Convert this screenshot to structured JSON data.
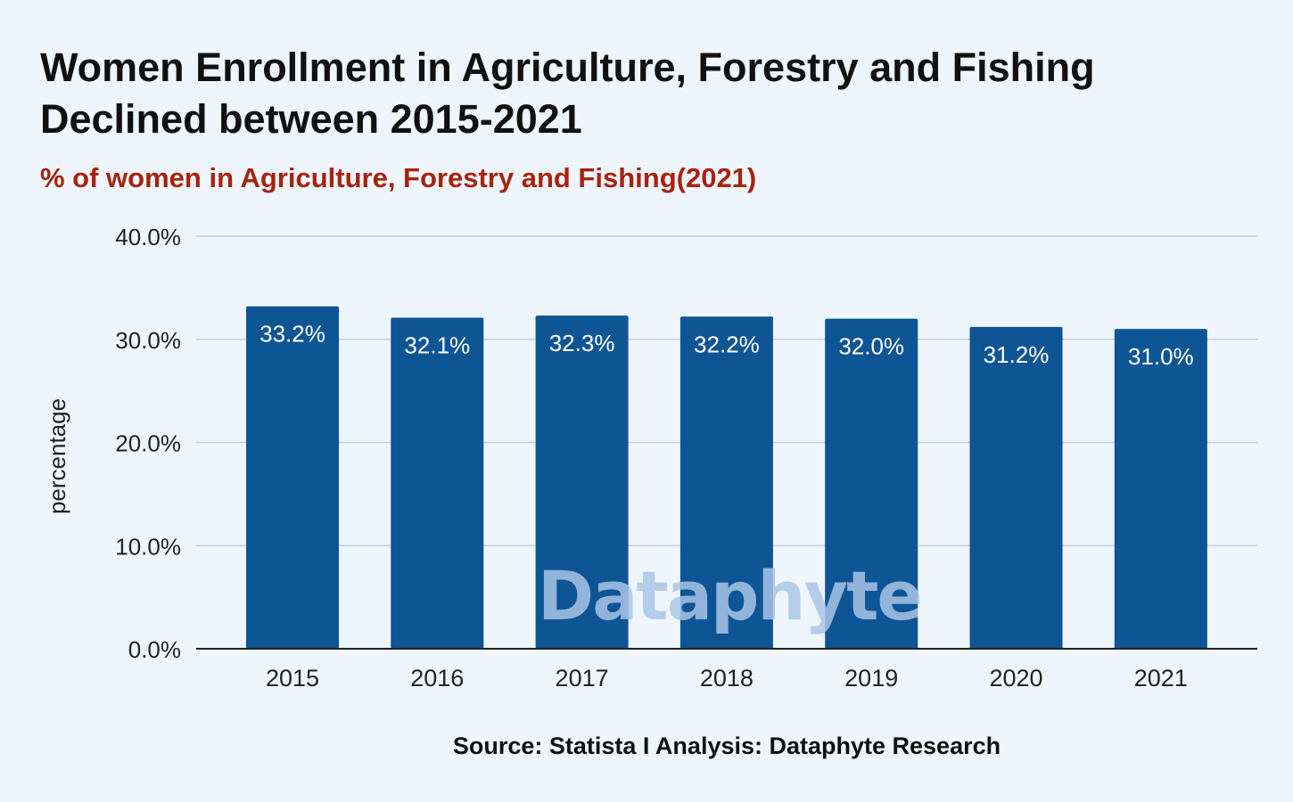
{
  "title_lines": [
    "Women Enrollment in Agriculture, Forestry and Fishing",
    "Declined between 2015-2021"
  ],
  "subtitle": "% of women in Agriculture, Forestry and Fishing(2021)",
  "source": "Source: Statista I Analysis: Dataphyte Research",
  "watermark": "Dataphyte",
  "colors": {
    "background": "#eef5fd",
    "bar": "#0e5596",
    "subtitle": "#a8230f",
    "gridline": "#c8cdd3",
    "axis": "#222222"
  },
  "chart_data": {
    "type": "bar",
    "categories": [
      "2015",
      "2016",
      "2017",
      "2018",
      "2019",
      "2020",
      "2021"
    ],
    "values": [
      33.2,
      32.1,
      32.3,
      32.2,
      32.0,
      31.2,
      31.0
    ],
    "data_labels": [
      "33.2%",
      "32.1%",
      "32.3%",
      "32.2%",
      "32.0%",
      "31.2%",
      "31.0%"
    ],
    "ylabel": "percentage",
    "xlabel": "",
    "ylim": [
      0,
      40
    ],
    "yticks": [
      0,
      10,
      20,
      30,
      40
    ],
    "ytick_labels": [
      "0.0%",
      "10.0%",
      "20.0%",
      "30.0%",
      "40.0%"
    ],
    "grid": true,
    "legend": "none"
  }
}
